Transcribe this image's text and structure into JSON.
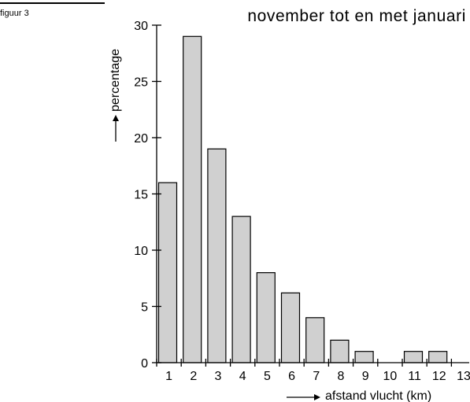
{
  "figure_label": "figuur 3",
  "chart_data": {
    "type": "bar",
    "title": "november tot en met januari",
    "xlabel": "afstand vlucht (km)",
    "ylabel": "percentage",
    "categories": [
      "1",
      "2",
      "3",
      "4",
      "5",
      "6",
      "7",
      "8",
      "9",
      "10",
      "11",
      "12",
      "13"
    ],
    "values": [
      16,
      29,
      19,
      13,
      8,
      6.2,
      4,
      2,
      1,
      0,
      1,
      1,
      0
    ],
    "ylim": [
      0,
      30
    ],
    "yticks": [
      "0",
      "5",
      "10",
      "15",
      "20",
      "25",
      "30"
    ],
    "grid": false,
    "legend": "none",
    "colors": {
      "bar_fill": "#d0d0d0",
      "bar_stroke": "#000000",
      "axis": "#000000"
    }
  }
}
